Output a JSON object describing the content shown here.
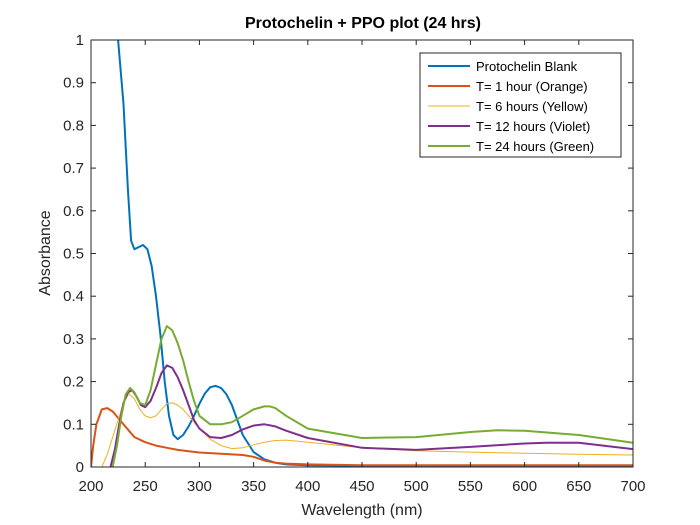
{
  "chart_data": {
    "type": "line",
    "title": "Protochelin + PPO plot (24 hrs)",
    "xlabel": "Wavelength (nm)",
    "ylabel": "Absorbance",
    "xlim": [
      200,
      700
    ],
    "ylim": [
      0,
      1
    ],
    "xticks": [
      200,
      250,
      300,
      350,
      400,
      450,
      500,
      550,
      600,
      650,
      700
    ],
    "yticks": [
      0,
      0.1,
      0.2,
      0.3,
      0.4,
      0.5,
      0.6,
      0.7,
      0.8,
      0.9,
      1
    ],
    "ytick_labels": [
      "0",
      "0.1",
      "0.2",
      "0.3",
      "0.4",
      "0.5",
      "0.6",
      "0.7",
      "0.8",
      "0.9",
      "1"
    ],
    "grid": false,
    "legend_position": "top-right",
    "series": [
      {
        "name": "Protochelin Blank",
        "color": "#0072BD",
        "x": [
          225,
          230,
          234,
          237,
          240,
          244,
          248,
          252,
          256,
          260,
          264,
          268,
          272,
          276,
          280,
          285,
          290,
          295,
          300,
          305,
          310,
          315,
          320,
          325,
          330,
          335,
          340,
          350,
          360,
          370,
          380,
          400,
          450,
          500,
          550,
          600,
          650,
          700
        ],
        "y": [
          1.0,
          0.85,
          0.65,
          0.53,
          0.51,
          0.515,
          0.52,
          0.51,
          0.47,
          0.4,
          0.31,
          0.2,
          0.12,
          0.075,
          0.065,
          0.075,
          0.095,
          0.12,
          0.148,
          0.172,
          0.187,
          0.19,
          0.185,
          0.17,
          0.145,
          0.11,
          0.075,
          0.035,
          0.018,
          0.01,
          0.006,
          0.004,
          0.003,
          0.003,
          0.003,
          0.003,
          0.003,
          0.003
        ]
      },
      {
        "name": "T= 1 hour (Orange)",
        "color": "#D95319",
        "x": [
          200,
          202,
          205,
          210,
          215,
          220,
          225,
          230,
          235,
          240,
          250,
          260,
          270,
          280,
          290,
          300,
          320,
          340,
          350,
          360,
          370,
          380,
          400,
          450,
          500,
          550,
          600,
          650,
          700
        ],
        "y": [
          0.0,
          0.05,
          0.1,
          0.135,
          0.138,
          0.13,
          0.115,
          0.1,
          0.085,
          0.07,
          0.058,
          0.05,
          0.045,
          0.04,
          0.037,
          0.034,
          0.031,
          0.028,
          0.024,
          0.015,
          0.01,
          0.008,
          0.006,
          0.004,
          0.004,
          0.004,
          0.004,
          0.004,
          0.004
        ]
      },
      {
        "name": "T= 6 hours (Yellow)",
        "color": "#EDB120",
        "x": [
          210,
          215,
          220,
          225,
          230,
          235,
          240,
          245,
          250,
          255,
          260,
          265,
          270,
          275,
          280,
          285,
          290,
          295,
          300,
          310,
          320,
          330,
          340,
          350,
          360,
          370,
          380,
          400,
          450,
          500,
          550,
          600,
          650,
          700
        ],
        "y": [
          0.0,
          0.03,
          0.07,
          0.11,
          0.15,
          0.172,
          0.16,
          0.135,
          0.12,
          0.115,
          0.12,
          0.135,
          0.148,
          0.15,
          0.145,
          0.135,
          0.12,
          0.105,
          0.09,
          0.065,
          0.05,
          0.043,
          0.045,
          0.052,
          0.058,
          0.062,
          0.063,
          0.058,
          0.045,
          0.038,
          0.035,
          0.032,
          0.03,
          0.028
        ]
      },
      {
        "name": "T= 12 hours (Violet)",
        "color": "#7E2F8E",
        "x": [
          218,
          222,
          226,
          230,
          234,
          238,
          242,
          246,
          250,
          255,
          260,
          265,
          270,
          275,
          280,
          285,
          290,
          295,
          300,
          310,
          320,
          330,
          340,
          350,
          360,
          370,
          380,
          400,
          450,
          500,
          550,
          600,
          620,
          650,
          700
        ],
        "y": [
          0.0,
          0.04,
          0.1,
          0.15,
          0.175,
          0.18,
          0.165,
          0.145,
          0.14,
          0.155,
          0.185,
          0.22,
          0.238,
          0.232,
          0.21,
          0.18,
          0.145,
          0.11,
          0.09,
          0.07,
          0.068,
          0.075,
          0.088,
          0.097,
          0.1,
          0.095,
          0.085,
          0.068,
          0.045,
          0.04,
          0.047,
          0.055,
          0.057,
          0.057,
          0.042
        ]
      },
      {
        "name": "T= 24 hours (Green)",
        "color": "#77AC30",
        "x": [
          220,
          224,
          228,
          232,
          236,
          240,
          245,
          250,
          255,
          260,
          265,
          270,
          275,
          280,
          285,
          290,
          295,
          300,
          310,
          320,
          330,
          340,
          350,
          360,
          365,
          370,
          380,
          400,
          450,
          500,
          550,
          575,
          600,
          650,
          700
        ],
        "y": [
          0.0,
          0.05,
          0.12,
          0.17,
          0.185,
          0.175,
          0.15,
          0.145,
          0.18,
          0.24,
          0.3,
          0.33,
          0.32,
          0.29,
          0.25,
          0.2,
          0.155,
          0.12,
          0.1,
          0.1,
          0.105,
          0.12,
          0.135,
          0.142,
          0.142,
          0.138,
          0.12,
          0.09,
          0.068,
          0.07,
          0.082,
          0.086,
          0.085,
          0.075,
          0.057
        ]
      }
    ]
  }
}
